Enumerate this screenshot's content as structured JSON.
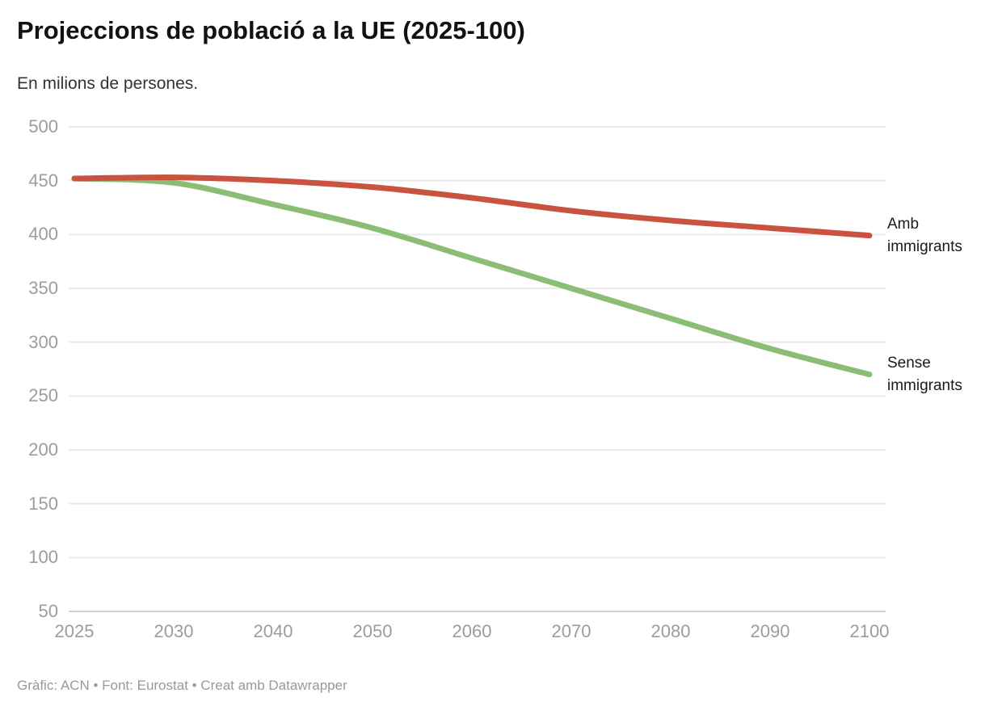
{
  "header": {
    "title": "Projeccions de població a la UE (2025-100)",
    "subtitle": "En milions de persones."
  },
  "footer": {
    "credit": "Gràfic: ACN • Font: Eurostat • Creat amb Datawrapper"
  },
  "chart_data": {
    "type": "line",
    "title": "Projeccions de població a la UE (2025-100)",
    "subtitle": "En milions de persones.",
    "xlabel": "",
    "ylabel": "",
    "categories": [
      "2025",
      "2030",
      "2040",
      "2050",
      "2060",
      "2070",
      "2080",
      "2090",
      "2100"
    ],
    "series": [
      {
        "name": "Amb immigrants",
        "color": "#c9533e",
        "values": [
          452,
          453,
          450,
          444,
          434,
          422,
          413,
          406,
          399
        ]
      },
      {
        "name": "Sense immigrants",
        "color": "#8cbd76",
        "values": [
          452,
          448,
          428,
          406,
          378,
          350,
          322,
          294,
          270
        ]
      }
    ],
    "ylim": [
      50,
      500
    ],
    "ytick_step": 50,
    "yticks": [
      50,
      100,
      150,
      200,
      250,
      300,
      350,
      400,
      450,
      500
    ],
    "grid": "horizontal",
    "gridline_color": "#e9e9e9",
    "baseline_color": "#d2d2d2",
    "legend_position": "right-of-line-end",
    "axis_label_color": "#9c9c9c",
    "line_width": 7
  }
}
